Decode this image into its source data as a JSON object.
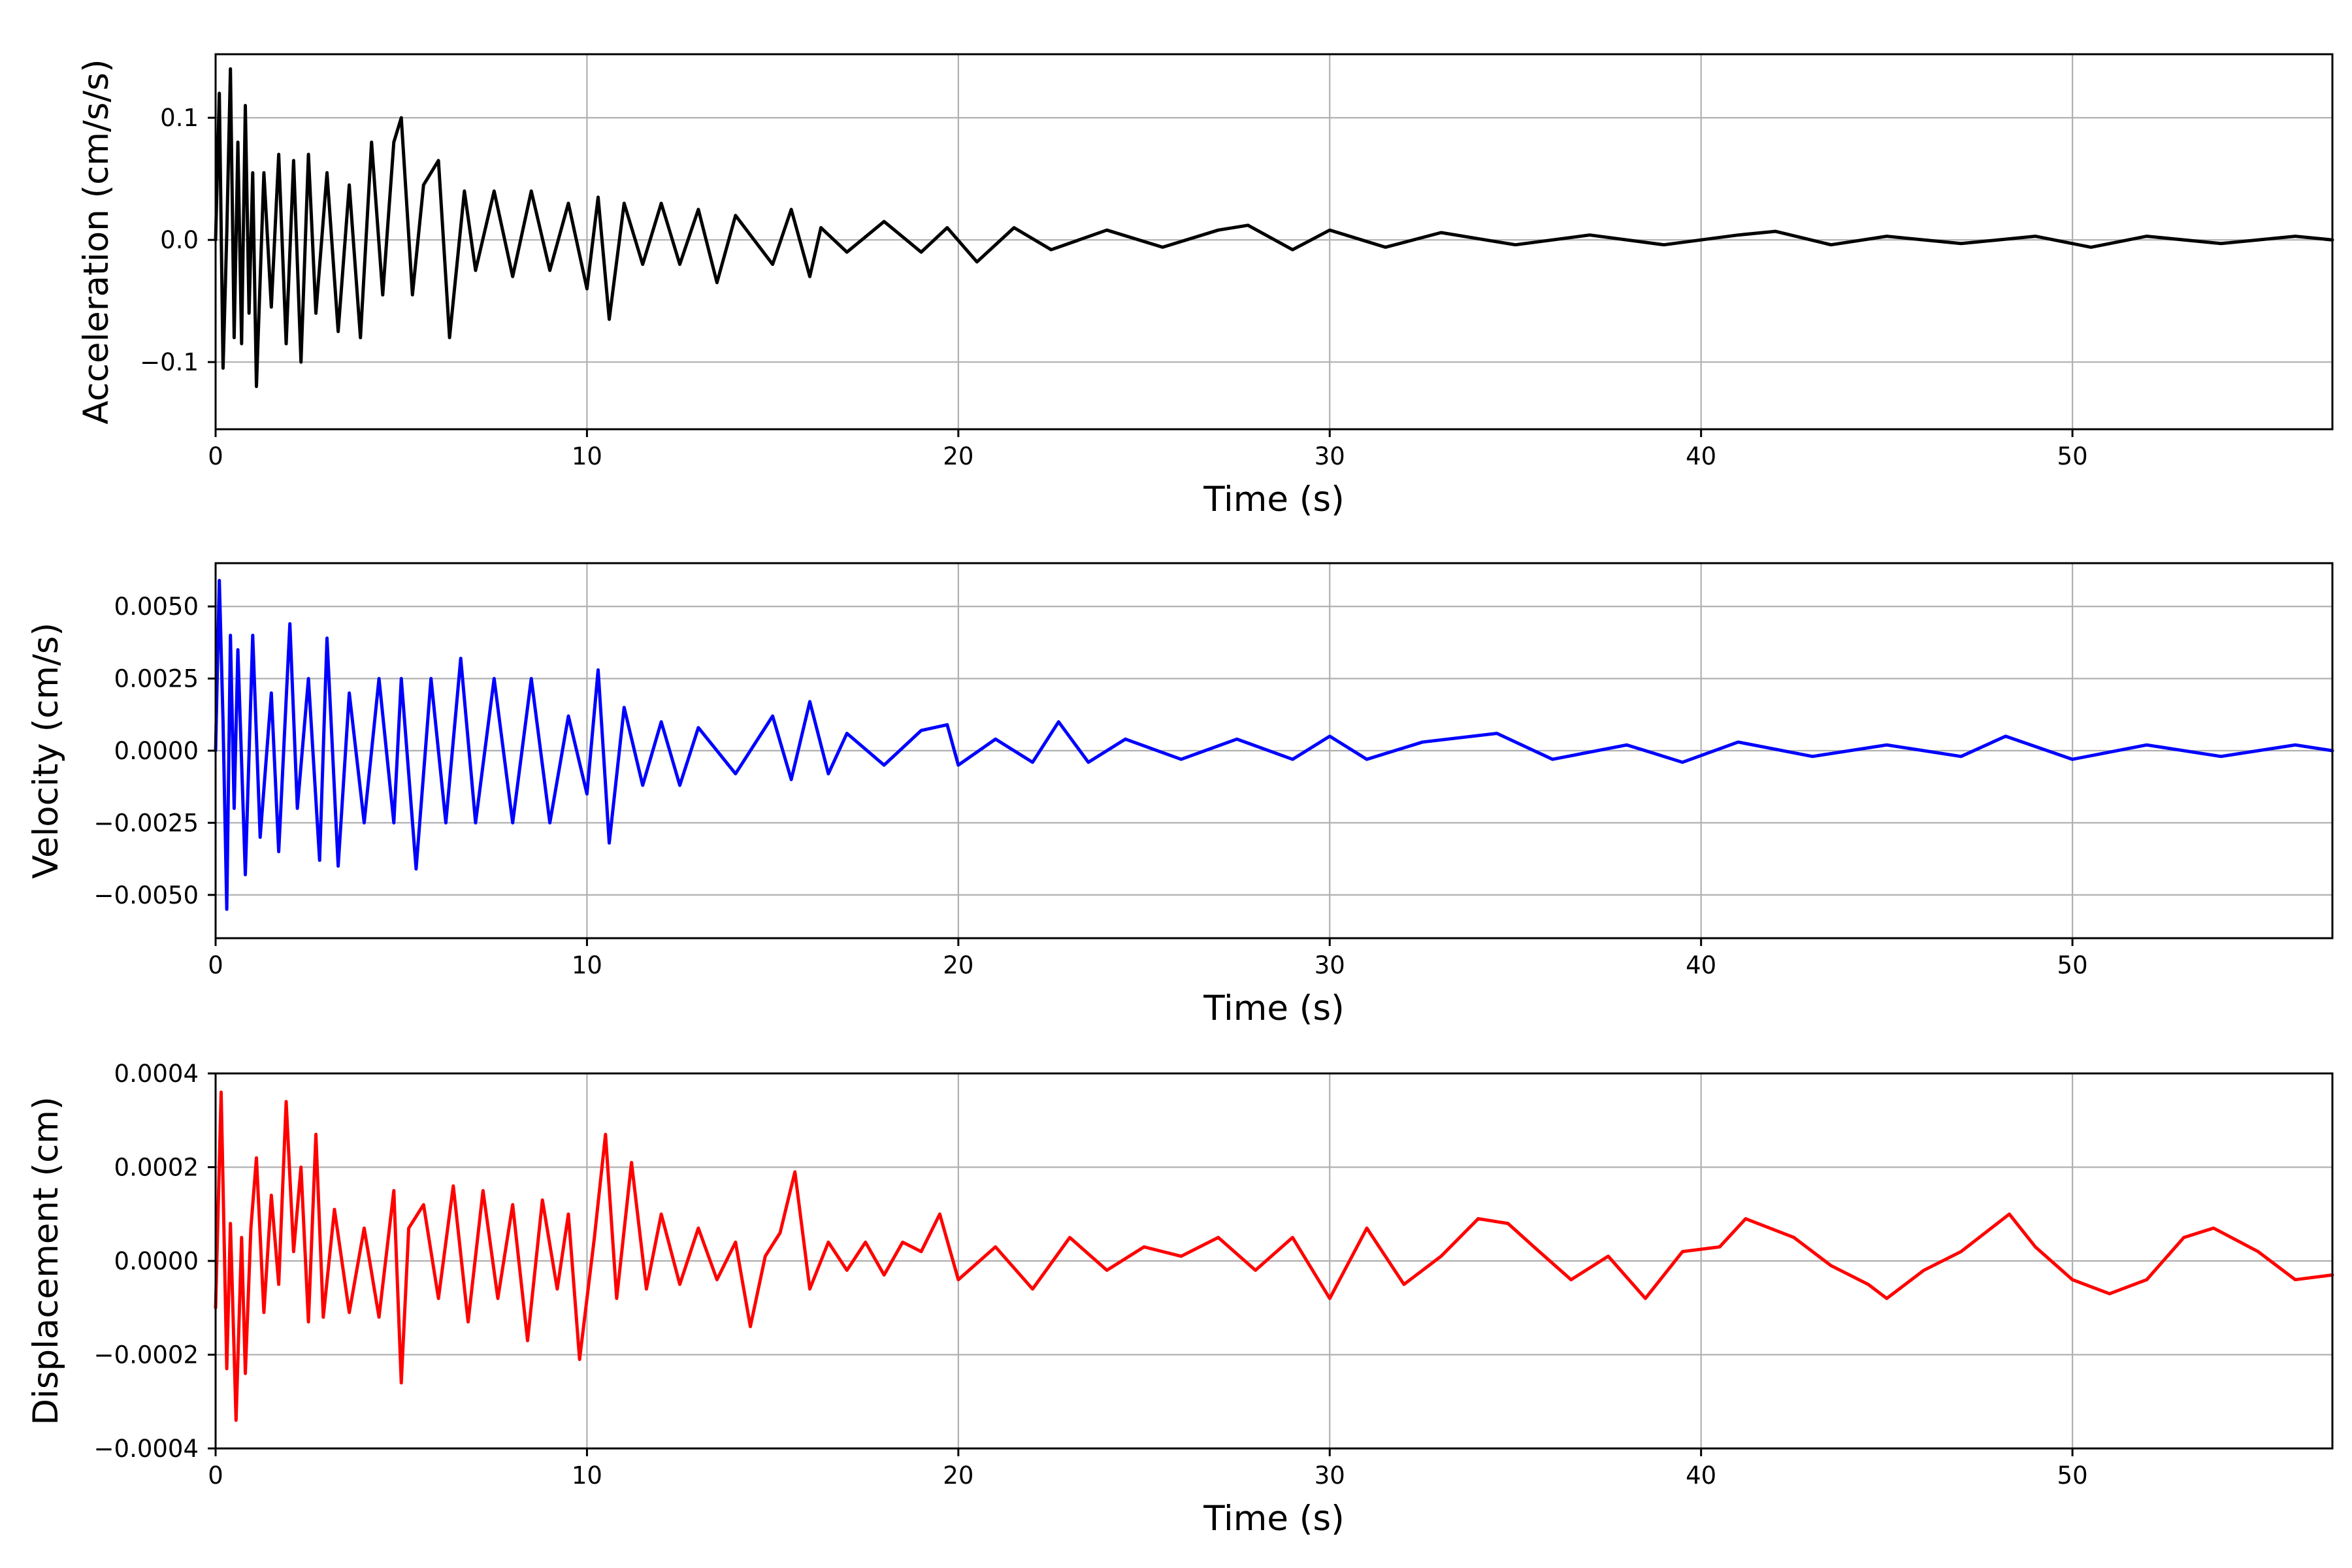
{
  "chart_data": [
    {
      "type": "line",
      "title": "",
      "xlabel": "Time (s)",
      "ylabel": "Acceleration (cm/s/s)",
      "xlim": [
        0,
        57
      ],
      "ylim": [
        -0.155,
        0.152
      ],
      "xticks": [
        0,
        10,
        20,
        30,
        40,
        50
      ],
      "xtick_labels": [
        "0",
        "10",
        "20",
        "30",
        "40",
        "50"
      ],
      "yticks": [
        -0.1,
        0.0,
        0.1
      ],
      "ytick_labels": [
        "−0.1",
        "0.0",
        "0.1"
      ],
      "grid": true,
      "series": [
        {
          "color": "#000000",
          "x": [
            0,
            0.1,
            0.2,
            0.3,
            0.4,
            0.5,
            0.6,
            0.7,
            0.8,
            0.9,
            1.0,
            1.1,
            1.3,
            1.5,
            1.7,
            1.9,
            2.1,
            2.3,
            2.5,
            2.7,
            3.0,
            3.3,
            3.6,
            3.9,
            4.2,
            4.5,
            4.8,
            5.0,
            5.3,
            5.6,
            6.0,
            6.3,
            6.7,
            7.0,
            7.5,
            8.0,
            8.5,
            9.0,
            9.5,
            10.0,
            10.3,
            10.6,
            11.0,
            11.5,
            12.0,
            12.5,
            13.0,
            13.5,
            14.0,
            15.0,
            15.5,
            16.0,
            16.3,
            17.0,
            18.0,
            19.0,
            19.7,
            20.5,
            21.5,
            22.5,
            24.0,
            25.5,
            27.0,
            27.8,
            29.0,
            30.0,
            31.5,
            33.0,
            35.0,
            37.0,
            39.0,
            41.0,
            42.0,
            43.5,
            45.0,
            47.0,
            49.0,
            50.5,
            52.0,
            54.0,
            56.0,
            57.0
          ],
          "y": [
            0.0,
            0.12,
            -0.105,
            0.005,
            0.14,
            -0.08,
            0.08,
            -0.085,
            0.11,
            -0.06,
            0.055,
            -0.12,
            0.055,
            -0.055,
            0.07,
            -0.085,
            0.065,
            -0.1,
            0.07,
            -0.06,
            0.055,
            -0.075,
            0.045,
            -0.08,
            0.08,
            -0.045,
            0.08,
            0.1,
            -0.045,
            0.045,
            0.065,
            -0.08,
            0.04,
            -0.025,
            0.04,
            -0.03,
            0.04,
            -0.025,
            0.03,
            -0.04,
            0.035,
            -0.065,
            0.03,
            -0.02,
            0.03,
            -0.02,
            0.025,
            -0.035,
            0.02,
            -0.02,
            0.025,
            -0.03,
            0.01,
            -0.01,
            0.015,
            -0.01,
            0.01,
            -0.018,
            0.01,
            -0.008,
            0.008,
            -0.006,
            0.008,
            0.012,
            -0.008,
            0.008,
            -0.006,
            0.006,
            -0.004,
            0.004,
            -0.004,
            0.004,
            0.007,
            -0.004,
            0.003,
            -0.003,
            0.003,
            -0.006,
            0.003,
            -0.003,
            0.003,
            0.0
          ]
        }
      ]
    },
    {
      "type": "line",
      "title": "",
      "xlabel": "Time (s)",
      "ylabel": "Velocity (cm/s)",
      "xlim": [
        0,
        57
      ],
      "ylim": [
        -0.0065,
        0.0065
      ],
      "xticks": [
        0,
        10,
        20,
        30,
        40,
        50
      ],
      "xtick_labels": [
        "0",
        "10",
        "20",
        "30",
        "40",
        "50"
      ],
      "yticks": [
        -0.005,
        -0.0025,
        0.0,
        0.0025,
        0.005
      ],
      "ytick_labels": [
        "−0.0050",
        "−0.0025",
        "0.0000",
        "0.0025",
        "0.0050"
      ],
      "grid": true,
      "series": [
        {
          "color": "#0000ff",
          "x": [
            0,
            0.1,
            0.2,
            0.3,
            0.4,
            0.5,
            0.6,
            0.8,
            1.0,
            1.2,
            1.5,
            1.7,
            2.0,
            2.2,
            2.5,
            2.8,
            3.0,
            3.3,
            3.6,
            4.0,
            4.4,
            4.8,
            5.0,
            5.4,
            5.8,
            6.2,
            6.6,
            7.0,
            7.5,
            8.0,
            8.5,
            9.0,
            9.5,
            10.0,
            10.3,
            10.6,
            11.0,
            11.5,
            12.0,
            12.5,
            13.0,
            14.0,
            15.0,
            15.5,
            16.0,
            16.5,
            17.0,
            18.0,
            19.0,
            19.7,
            20.0,
            21.0,
            22.0,
            22.7,
            23.5,
            24.5,
            26.0,
            27.5,
            29.0,
            30.0,
            31.0,
            32.5,
            34.5,
            36.0,
            38.0,
            39.5,
            41.0,
            43.0,
            45.0,
            47.0,
            48.2,
            50.0,
            52.0,
            54.0,
            56.0,
            57.0
          ],
          "y": [
            0.0,
            0.0059,
            0.001,
            -0.0055,
            0.004,
            -0.002,
            0.0035,
            -0.0043,
            0.004,
            -0.003,
            0.002,
            -0.0035,
            0.0044,
            -0.002,
            0.0025,
            -0.0038,
            0.0039,
            -0.004,
            0.002,
            -0.0025,
            0.0025,
            -0.0025,
            0.0025,
            -0.0041,
            0.0025,
            -0.0025,
            0.0032,
            -0.0025,
            0.0025,
            -0.0025,
            0.0025,
            -0.0025,
            0.0012,
            -0.0015,
            0.0028,
            -0.0032,
            0.0015,
            -0.0012,
            0.001,
            -0.0012,
            0.0008,
            -0.0008,
            0.0012,
            -0.001,
            0.0017,
            -0.0008,
            0.0006,
            -0.0005,
            0.0007,
            0.0009,
            -0.0005,
            0.0004,
            -0.0004,
            0.001,
            -0.0004,
            0.0004,
            -0.0003,
            0.0004,
            -0.0003,
            0.0005,
            -0.0003,
            0.0003,
            0.0006,
            -0.0003,
            0.0002,
            -0.0004,
            0.0003,
            -0.0002,
            0.0002,
            -0.0002,
            0.0005,
            -0.0003,
            0.0002,
            -0.0002,
            0.0002,
            0.0
          ]
        }
      ]
    },
    {
      "type": "line",
      "title": "",
      "xlabel": "Time (s)",
      "ylabel": "Displacement (cm)",
      "xlim": [
        0,
        57
      ],
      "ylim": [
        -0.0004,
        0.0004
      ],
      "xticks": [
        0,
        10,
        20,
        30,
        40,
        50
      ],
      "xtick_labels": [
        "0",
        "10",
        "20",
        "30",
        "40",
        "50"
      ],
      "yticks": [
        -0.0004,
        -0.0002,
        0.0,
        0.0002,
        0.0004
      ],
      "ytick_labels": [
        "−0.0004",
        "−0.0002",
        "0.0000",
        "0.0002",
        "0.0004"
      ],
      "grid": true,
      "series": [
        {
          "color": "#ff0000",
          "x": [
            0,
            0.15,
            0.3,
            0.4,
            0.55,
            0.7,
            0.8,
            0.95,
            1.1,
            1.3,
            1.5,
            1.7,
            1.9,
            2.1,
            2.3,
            2.5,
            2.7,
            2.9,
            3.2,
            3.6,
            4.0,
            4.4,
            4.8,
            5.0,
            5.2,
            5.6,
            6.0,
            6.4,
            6.8,
            7.2,
            7.6,
            8.0,
            8.4,
            8.8,
            9.2,
            9.5,
            9.8,
            10.2,
            10.5,
            10.8,
            11.2,
            11.6,
            12.0,
            12.5,
            13.0,
            13.5,
            14.0,
            14.4,
            14.8,
            15.2,
            15.6,
            16.0,
            16.5,
            17.0,
            17.5,
            18.0,
            18.5,
            19.0,
            19.5,
            20.0,
            21.0,
            22.0,
            23.0,
            24.0,
            25.0,
            26.0,
            27.0,
            28.0,
            29.0,
            30.0,
            31.0,
            32.0,
            33.0,
            34.0,
            34.8,
            35.5,
            36.5,
            37.5,
            38.5,
            39.5,
            40.5,
            41.2,
            42.5,
            43.5,
            44.5,
            45.0,
            46.0,
            47.0,
            48.3,
            49.0,
            50.0,
            51.0,
            52.0,
            53.0,
            53.8,
            55.0,
            56.0,
            57.0
          ],
          "y": [
            -0.0001,
            0.00036,
            -0.00023,
            8e-05,
            -0.00034,
            5e-05,
            -0.00024,
            7e-05,
            0.00022,
            -0.00011,
            0.00014,
            -5e-05,
            0.00034,
            2e-05,
            0.0002,
            -0.00013,
            0.00027,
            -0.00012,
            0.00011,
            -0.00011,
            7e-05,
            -0.00012,
            0.00015,
            -0.00026,
            7e-05,
            0.00012,
            -8e-05,
            0.00016,
            -0.00013,
            0.00015,
            -8e-05,
            0.00012,
            -0.00017,
            0.00013,
            -6e-05,
            0.0001,
            -0.00021,
            5e-05,
            0.00027,
            -8e-05,
            0.00021,
            -6e-05,
            0.0001,
            -5e-05,
            7e-05,
            -4e-05,
            4e-05,
            -0.00014,
            1e-05,
            6e-05,
            0.00019,
            -6e-05,
            4e-05,
            -2e-05,
            4e-05,
            -3e-05,
            4e-05,
            2e-05,
            0.0001,
            -4e-05,
            3e-05,
            -6e-05,
            5e-05,
            -2e-05,
            3e-05,
            1e-05,
            5e-05,
            -2e-05,
            5e-05,
            -8e-05,
            7e-05,
            -5e-05,
            1e-05,
            9e-05,
            8e-05,
            3e-05,
            -4e-05,
            1e-05,
            -8e-05,
            2e-05,
            3e-05,
            9e-05,
            5e-05,
            -1e-05,
            -5e-05,
            -8e-05,
            -2e-05,
            2e-05,
            0.0001,
            3e-05,
            -4e-05,
            -7e-05,
            -4e-05,
            5e-05,
            7e-05,
            2e-05,
            -4e-05,
            -3e-05
          ]
        }
      ]
    }
  ]
}
